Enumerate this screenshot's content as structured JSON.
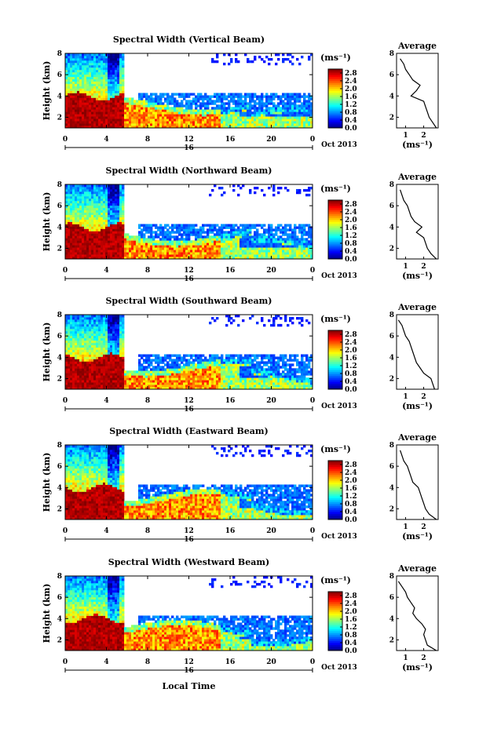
{
  "figure": {
    "xlabel": "Local Time",
    "colorbar_label": "(ms⁻¹)",
    "average_title": "Average",
    "average_xlabel": "(ms⁻¹)",
    "date_label": "Oct 2013",
    "day_label": "16"
  },
  "chart_data": [
    {
      "type": "heatmap",
      "title": "Spectral Width (Vertical Beam)",
      "ylabel": "Height (km)",
      "xlabel": "Local Time",
      "x_ticks": [
        "0",
        "4",
        "8",
        "12",
        "16",
        "20",
        "0"
      ],
      "y_ticks": [
        "2",
        "4",
        "6",
        "8"
      ],
      "xlim": [
        0,
        24
      ],
      "ylim": [
        1,
        8
      ],
      "colorbar": {
        "ticks": [
          "0.0",
          "0.4",
          "0.8",
          "1.2",
          "1.6",
          "2.0",
          "2.4",
          "2.8"
        ],
        "range": [
          0,
          3.0
        ]
      },
      "average_profile": {
        "x_ticks": [
          "1",
          "2"
        ],
        "xlim": [
          0.5,
          2.8
        ],
        "height": [
          1.0,
          1.5,
          2.0,
          2.5,
          3.0,
          3.5,
          4.0,
          4.5,
          5.0,
          5.5,
          6.0,
          6.5,
          7.0,
          7.5
        ],
        "values": [
          2.7,
          2.5,
          2.3,
          2.2,
          2.1,
          2.0,
          1.3,
          1.6,
          1.8,
          1.4,
          1.2,
          1.0,
          0.9,
          0.7
        ]
      }
    },
    {
      "type": "heatmap",
      "title": "Spectral Width (Northward Beam)",
      "ylabel": "Height (km)",
      "xlabel": "Local Time",
      "x_ticks": [
        "0",
        "4",
        "8",
        "12",
        "16",
        "20",
        "0"
      ],
      "y_ticks": [
        "2",
        "4",
        "6",
        "8"
      ],
      "xlim": [
        0,
        24
      ],
      "ylim": [
        1,
        8
      ],
      "colorbar": {
        "ticks": [
          "0.0",
          "0.4",
          "0.8",
          "1.2",
          "1.6",
          "2.0",
          "2.4",
          "2.8"
        ],
        "range": [
          0,
          3.0
        ]
      },
      "average_profile": {
        "x_ticks": [
          "1",
          "2"
        ],
        "xlim": [
          0.5,
          2.8
        ],
        "height": [
          1.0,
          1.5,
          2.0,
          2.5,
          3.0,
          3.5,
          4.0,
          4.5,
          5.0,
          5.5,
          6.0,
          6.5,
          7.0,
          7.5
        ],
        "values": [
          2.7,
          2.4,
          2.2,
          2.1,
          2.0,
          1.6,
          1.9,
          1.5,
          1.3,
          1.2,
          1.1,
          0.9,
          0.8,
          0.7
        ]
      }
    },
    {
      "type": "heatmap",
      "title": "Spectral Width (Southward Beam)",
      "ylabel": "Height (km)",
      "xlabel": "Local Time",
      "x_ticks": [
        "0",
        "4",
        "8",
        "12",
        "16",
        "20",
        "0"
      ],
      "y_ticks": [
        "2",
        "4",
        "6",
        "8"
      ],
      "xlim": [
        0,
        24
      ],
      "ylim": [
        1,
        8
      ],
      "colorbar": {
        "ticks": [
          "0.0",
          "0.4",
          "0.8",
          "1.2",
          "1.6",
          "2.0",
          "2.4",
          "2.8"
        ],
        "range": [
          0,
          3.0
        ]
      },
      "average_profile": {
        "x_ticks": [
          "1",
          "2"
        ],
        "xlim": [
          0.5,
          2.8
        ],
        "height": [
          1.0,
          1.5,
          2.0,
          2.5,
          3.0,
          3.5,
          4.0,
          4.5,
          5.0,
          5.5,
          6.0,
          6.5,
          7.0,
          7.5
        ],
        "values": [
          2.6,
          2.5,
          2.4,
          2.0,
          1.8,
          1.6,
          1.5,
          1.4,
          1.3,
          1.2,
          1.0,
          0.9,
          0.8,
          0.6
        ]
      }
    },
    {
      "type": "heatmap",
      "title": "Spectral Width (Eastward Beam)",
      "ylabel": "Height (km)",
      "xlabel": "Local Time",
      "x_ticks": [
        "0",
        "4",
        "8",
        "12",
        "16",
        "20",
        "0"
      ],
      "y_ticks": [
        "2",
        "4",
        "6",
        "8"
      ],
      "xlim": [
        0,
        24
      ],
      "ylim": [
        1,
        8
      ],
      "colorbar": {
        "ticks": [
          "0.0",
          "0.4",
          "0.8",
          "1.2",
          "1.6",
          "2.0",
          "2.4",
          "2.8"
        ],
        "range": [
          0,
          3.0
        ]
      },
      "average_profile": {
        "x_ticks": [
          "1",
          "2"
        ],
        "xlim": [
          0.5,
          2.8
        ],
        "height": [
          1.0,
          1.5,
          2.0,
          2.5,
          3.0,
          3.5,
          4.0,
          4.5,
          5.0,
          5.5,
          6.0,
          6.5,
          7.0,
          7.5
        ],
        "values": [
          2.7,
          2.3,
          2.1,
          2.0,
          1.9,
          1.8,
          1.7,
          1.4,
          1.3,
          1.2,
          1.1,
          0.9,
          0.8,
          0.7
        ]
      }
    },
    {
      "type": "heatmap",
      "title": "Spectral Width (Westward Beam)",
      "ylabel": "Height (km)",
      "xlabel": "Local Time",
      "x_ticks": [
        "0",
        "4",
        "8",
        "12",
        "16",
        "20",
        "0"
      ],
      "y_ticks": [
        "2",
        "4",
        "6",
        "8"
      ],
      "xlim": [
        0,
        24
      ],
      "ylim": [
        1,
        8
      ],
      "colorbar": {
        "ticks": [
          "0.0",
          "0.4",
          "0.8",
          "1.2",
          "1.6",
          "2.0",
          "2.4",
          "2.8"
        ],
        "range": [
          0,
          3.0
        ]
      },
      "average_profile": {
        "x_ticks": [
          "1",
          "2"
        ],
        "xlim": [
          0.5,
          2.8
        ],
        "height": [
          1.0,
          1.5,
          2.0,
          2.5,
          3.0,
          3.5,
          4.0,
          4.5,
          5.0,
          5.5,
          6.0,
          6.5,
          7.0,
          7.5
        ],
        "values": [
          2.7,
          2.2,
          2.1,
          2.0,
          2.1,
          1.9,
          1.6,
          1.4,
          1.5,
          1.3,
          1.1,
          1.0,
          0.8,
          0.6
        ]
      }
    }
  ]
}
